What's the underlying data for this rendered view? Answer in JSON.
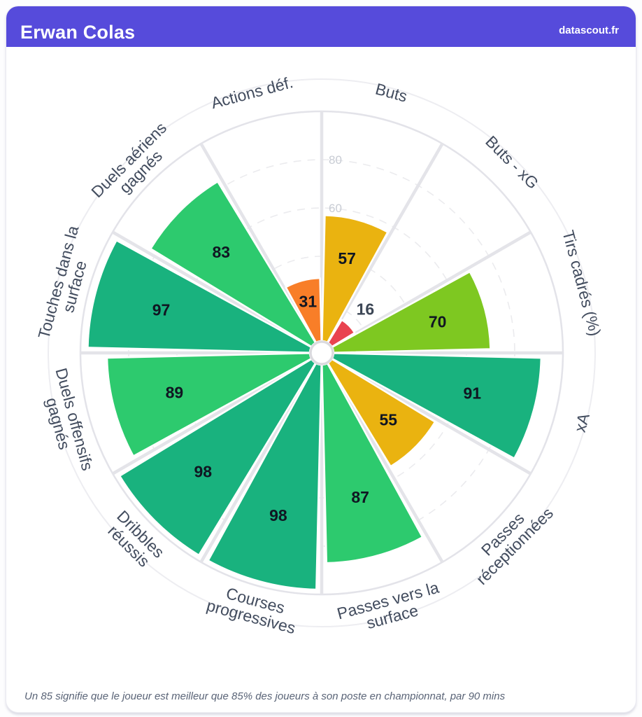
{
  "header": {
    "title": "Erwan Colas",
    "brand": "datascout.fr"
  },
  "footer": {
    "note": "Un 85 signifie que le joueur est meilleur que 85% des joueurs à son poste en championnat, par 90 mins"
  },
  "chart_data": {
    "type": "pizza-polar-bar",
    "start": "top",
    "direction": "clockwise",
    "rmax": 100,
    "rings": [
      20,
      40,
      60,
      80
    ],
    "visible_ring_labels": [
      "60",
      "80"
    ],
    "categories": [
      "Buts",
      "Buts - xG",
      "Tirs cadrés (%)",
      "xA",
      "Passes réceptionnées",
      "Passes vers la surface",
      "Courses progressives",
      "Dribbles réussis",
      "Duels offensifs gagnés",
      "Touches dans la surface",
      "Duels aériens gagnés",
      "Actions déf."
    ],
    "values": [
      57,
      16,
      70,
      91,
      55,
      87,
      98,
      98,
      89,
      97,
      83,
      31
    ],
    "slices": [
      {
        "label": "Buts",
        "lines": [
          "Buts"
        ],
        "value": 57
      },
      {
        "label": "Buts - xG",
        "lines": [
          "Buts - xG"
        ],
        "value": 16
      },
      {
        "label": "Tirs cadrés (%)",
        "lines": [
          "Tirs cadrés (%)"
        ],
        "value": 70
      },
      {
        "label": "xA",
        "lines": [
          "xA"
        ],
        "value": 91
      },
      {
        "label": "Passes réceptionnées",
        "lines": [
          "Passes",
          "réceptionnées"
        ],
        "value": 55
      },
      {
        "label": "Passes vers la surface",
        "lines": [
          "Passes vers la",
          "surface"
        ],
        "value": 87
      },
      {
        "label": "Courses progressives",
        "lines": [
          "Courses",
          "progressives"
        ],
        "value": 98
      },
      {
        "label": "Dribbles réussis",
        "lines": [
          "Dribbles",
          "réussis"
        ],
        "value": 98
      },
      {
        "label": "Duels offensifs gagnés",
        "lines": [
          "Duels offensifs",
          "gagnés"
        ],
        "value": 89
      },
      {
        "label": "Touches dans la surface",
        "lines": [
          "Touches dans la",
          "surface"
        ],
        "value": 97
      },
      {
        "label": "Duels aériens gagnés",
        "lines": [
          "Duels aériens",
          "gagnés"
        ],
        "value": 83
      },
      {
        "label": "Actions déf.",
        "lines": [
          "Actions déf."
        ],
        "value": 31
      }
    ],
    "color_thresholds": [
      {
        "min": 90,
        "color": "#19b27e"
      },
      {
        "min": 80,
        "color": "#2dca6e"
      },
      {
        "min": 60,
        "color": "#7ec821"
      },
      {
        "min": 40,
        "color": "#eab310"
      },
      {
        "min": 20,
        "color": "#f87e28"
      },
      {
        "min": 0,
        "color": "#e9434f"
      }
    ],
    "style": {
      "value_color": "#101622",
      "value_color_outside": "#3d4756",
      "category_color": "#424c5e",
      "ring_label_color": "#c8ccd4",
      "grid_color": "#ebebee",
      "spoke_color": "#e4e4e9",
      "outer_ring_color": "#e3e3e9",
      "outer_faint_ring_color": "#ededf1",
      "center_fill": "#ffffff",
      "center_stroke": "#dadade"
    }
  }
}
